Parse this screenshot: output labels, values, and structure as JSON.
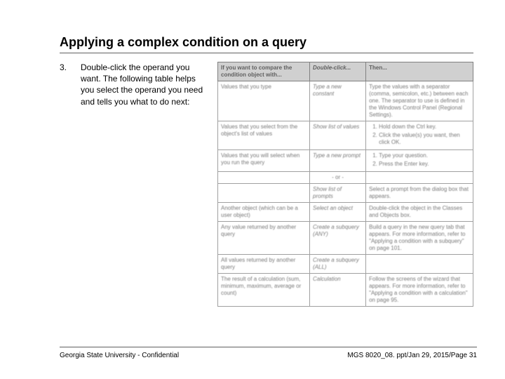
{
  "title": "Applying a complex condition on a query",
  "step": {
    "number": "3.",
    "text": "Double-click the operand you want.  The following table helps you select the operand you need and tells you what to do next:"
  },
  "table": {
    "headers": [
      "If you want to compare the condition object with...",
      "Double-click...",
      "Then..."
    ],
    "rows": [
      {
        "c1": "Values that you type",
        "c2": "Type a new constant",
        "c3": "Type the values with a separator (comma, semicolon, etc.) between each one. The separator to use is defined in the Windows Control Panel (Regional Settings)."
      },
      {
        "c1": "Values that you select from the object's list of values",
        "c2": "Show list of values",
        "c3_list": [
          "Hold down the Ctrl key.",
          "Click the value(s) you want, then click OK."
        ]
      },
      {
        "c1": "Values that you will select when you run the query",
        "c2": "Type a new prompt",
        "c3_list": [
          "Type your question.",
          "Press the Enter key."
        ]
      },
      {
        "c1": "",
        "c2_plain": "- or -",
        "c3": ""
      },
      {
        "c1": "",
        "c2": "Show list of prompts",
        "c3": "Select a prompt from the dialog box that appears."
      },
      {
        "c1": "Another object (which can be a user object)",
        "c2": "Select an object",
        "c3": "Double-click the object in the Classes and Objects box."
      },
      {
        "c1": "Any value returned by another query",
        "c2": "Create a subquery (ANY)",
        "c3": "Build a query in the new query tab that appears. For more information, refer to \"Applying a condition with a subquery\" on page 101."
      },
      {
        "c1": "All values returned by another query",
        "c2": "Create a subquery (ALL)",
        "c3": ""
      },
      {
        "c1": "The result of a calculation (sum, minimum, maximum, average or count)",
        "c2": "Calculation",
        "c3": "Follow the screens of the wizard that appears. For more information, refer to \"Applying a condition with a calculation\" on page 95."
      }
    ]
  },
  "footer": {
    "left": "Georgia State University - Confidential",
    "right": "MGS 8020_08. ppt/Jan 29, 2015/Page 31"
  }
}
